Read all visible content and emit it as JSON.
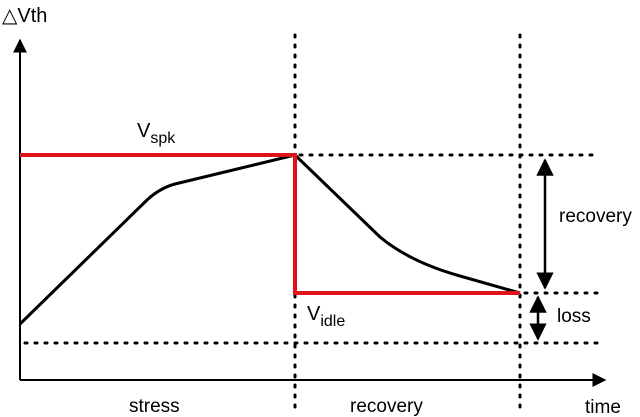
{
  "labels": {
    "y_axis_delta": "△",
    "y_axis_var": "Vth",
    "x_axis": "time",
    "v_spk_main": "V",
    "v_spk_sub": "spk",
    "v_idle_main": "V",
    "v_idle_sub": "idle",
    "phase_stress": "stress",
    "phase_recovery": "recovery",
    "recovery_amount": "recovery",
    "loss_amount": "loss"
  },
  "colors": {
    "stress_level": "#e0121b",
    "curve": "#000000",
    "guides": "#000000"
  }
}
